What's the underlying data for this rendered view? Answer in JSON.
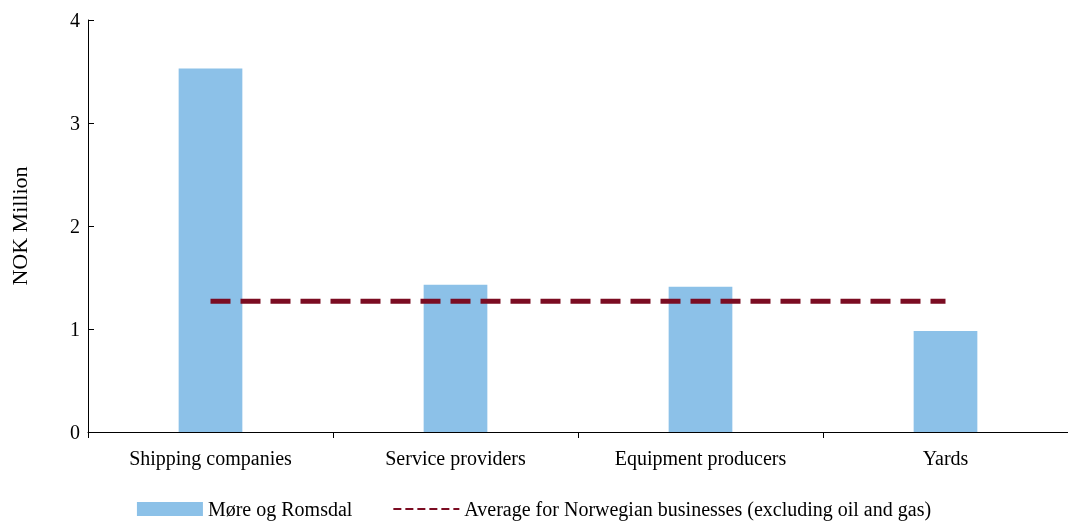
{
  "chart_data": {
    "type": "bar",
    "ylabel": "NOK Million",
    "categories": [
      "Shipping companies",
      "Service providers",
      "Equipment producers",
      "Yards"
    ],
    "series": [
      {
        "name": "Møre og Romsdal",
        "color": "#8cc1e8",
        "values": [
          3.53,
          1.43,
          1.41,
          0.98
        ]
      },
      {
        "name": "Average for Norwegian businesses (excluding oil and gas)",
        "type": "line",
        "color": "#7b0c22",
        "line_style": "dashed",
        "marker": "none",
        "values": [
          1.27,
          1.27,
          1.27,
          1.27
        ]
      }
    ],
    "ylim": [
      0,
      4
    ],
    "yticks": [
      0,
      1,
      2,
      3,
      4
    ],
    "grid": false,
    "legend": "bottom"
  }
}
